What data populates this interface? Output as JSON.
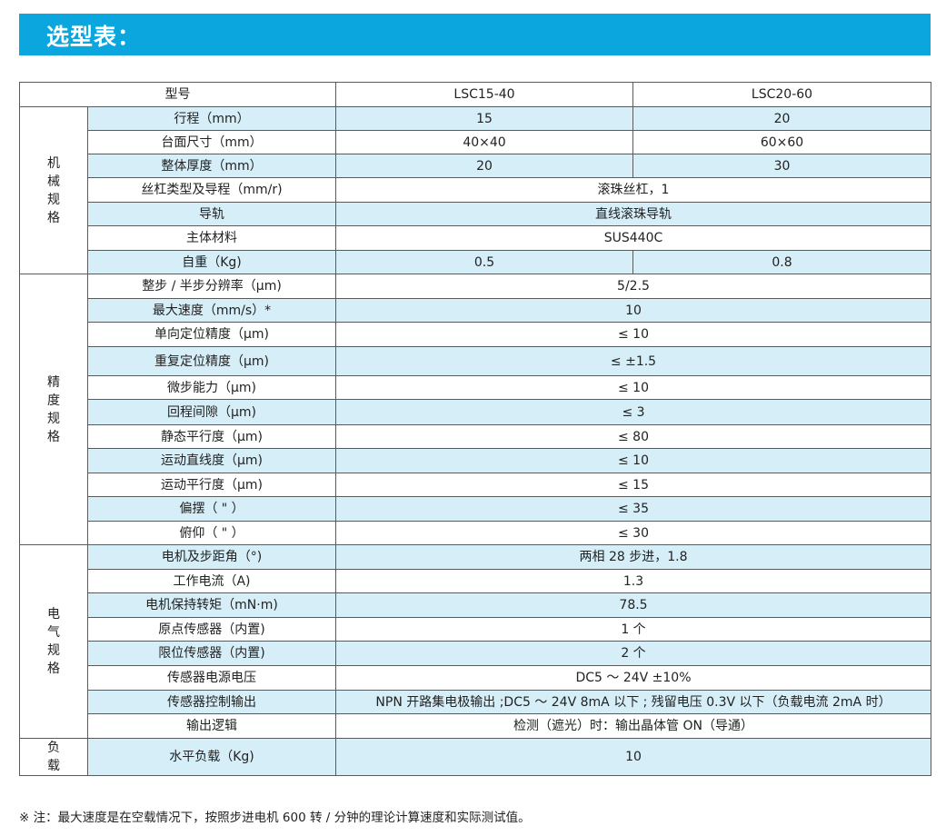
{
  "title": "选型表：",
  "header": {
    "label": "型号",
    "models": [
      "LSC15-40",
      "LSC20-60"
    ]
  },
  "groups": [
    {
      "chars": [
        "机",
        "械",
        "规",
        "格"
      ],
      "rows": [
        {
          "label": "行程（mm）",
          "values": [
            "15",
            "20"
          ]
        },
        {
          "label": "台面尺寸（mm）",
          "values": [
            "40×40",
            "60×60"
          ]
        },
        {
          "label": "整体厚度（mm）",
          "values": [
            "20",
            "30"
          ]
        },
        {
          "label": "丝杠类型及导程（mm/r)",
          "value": "滚珠丝杠，1"
        },
        {
          "label": "导轨",
          "value": "直线滚珠导轨"
        },
        {
          "label": "主体材料",
          "value": "SUS440C"
        },
        {
          "label": "自重（Kg)",
          "values": [
            "0.5",
            "0.8"
          ]
        }
      ]
    },
    {
      "chars": [
        "精",
        "度",
        "规",
        "格"
      ],
      "rows": [
        {
          "label": "整步 / 半步分辨率（μm)",
          "value": "5/2.5"
        },
        {
          "label": "最大速度（mm/s）*",
          "value": "10"
        },
        {
          "label": "单向定位精度（μm)",
          "value": "≤ 10"
        },
        {
          "label": "重复定位精度（μm)",
          "value": "≤ ±1.5"
        },
        {
          "label": "微步能力（μm)",
          "value": "≤ 10"
        },
        {
          "label": "回程间隙（μm)",
          "value": "≤ 3"
        },
        {
          "label": "静态平行度（μm)",
          "value": "≤ 80"
        },
        {
          "label": "运动直线度（μm)",
          "value": "≤ 10"
        },
        {
          "label": "运动平行度（μm)",
          "value": "≤ 15"
        },
        {
          "label": "偏摆（ \" ）",
          "value": "≤ 35"
        },
        {
          "label": "俯仰（ \" ）",
          "value": "≤ 30"
        }
      ]
    },
    {
      "chars": [
        "电",
        "气",
        "规",
        "格"
      ],
      "rows": [
        {
          "label": "电机及步距角（°)",
          "value": "两相 28 步进，1.8"
        },
        {
          "label": "工作电流（A)",
          "value": "1.3"
        },
        {
          "label": "电机保持转矩（mN·m)",
          "value": "78.5"
        },
        {
          "label": "原点传感器（内置)",
          "value": "1 个"
        },
        {
          "label": "限位传感器（内置)",
          "value": "2 个"
        },
        {
          "label": "传感器电源电压",
          "value": "DC5 ～ 24V ±10%"
        },
        {
          "label": "传感器控制输出",
          "value": "NPN 开路集电极输出 ;DC5 ～ 24V 8mA 以下 ; 残留电压 0.3V 以下（负载电流 2mA 时）"
        },
        {
          "label": "输出逻辑",
          "value": "检测（遮光）时：输出晶体管 ON（导通）"
        }
      ]
    },
    {
      "chars": [
        "负",
        "载"
      ],
      "rows": [
        {
          "label": "水平负载（Kg)",
          "value": "10"
        }
      ]
    }
  ],
  "note": "※ 注：最大速度是在空载情况下，按照步进电机 600 转 / 分钟的理论计算速度和实际测试值。"
}
